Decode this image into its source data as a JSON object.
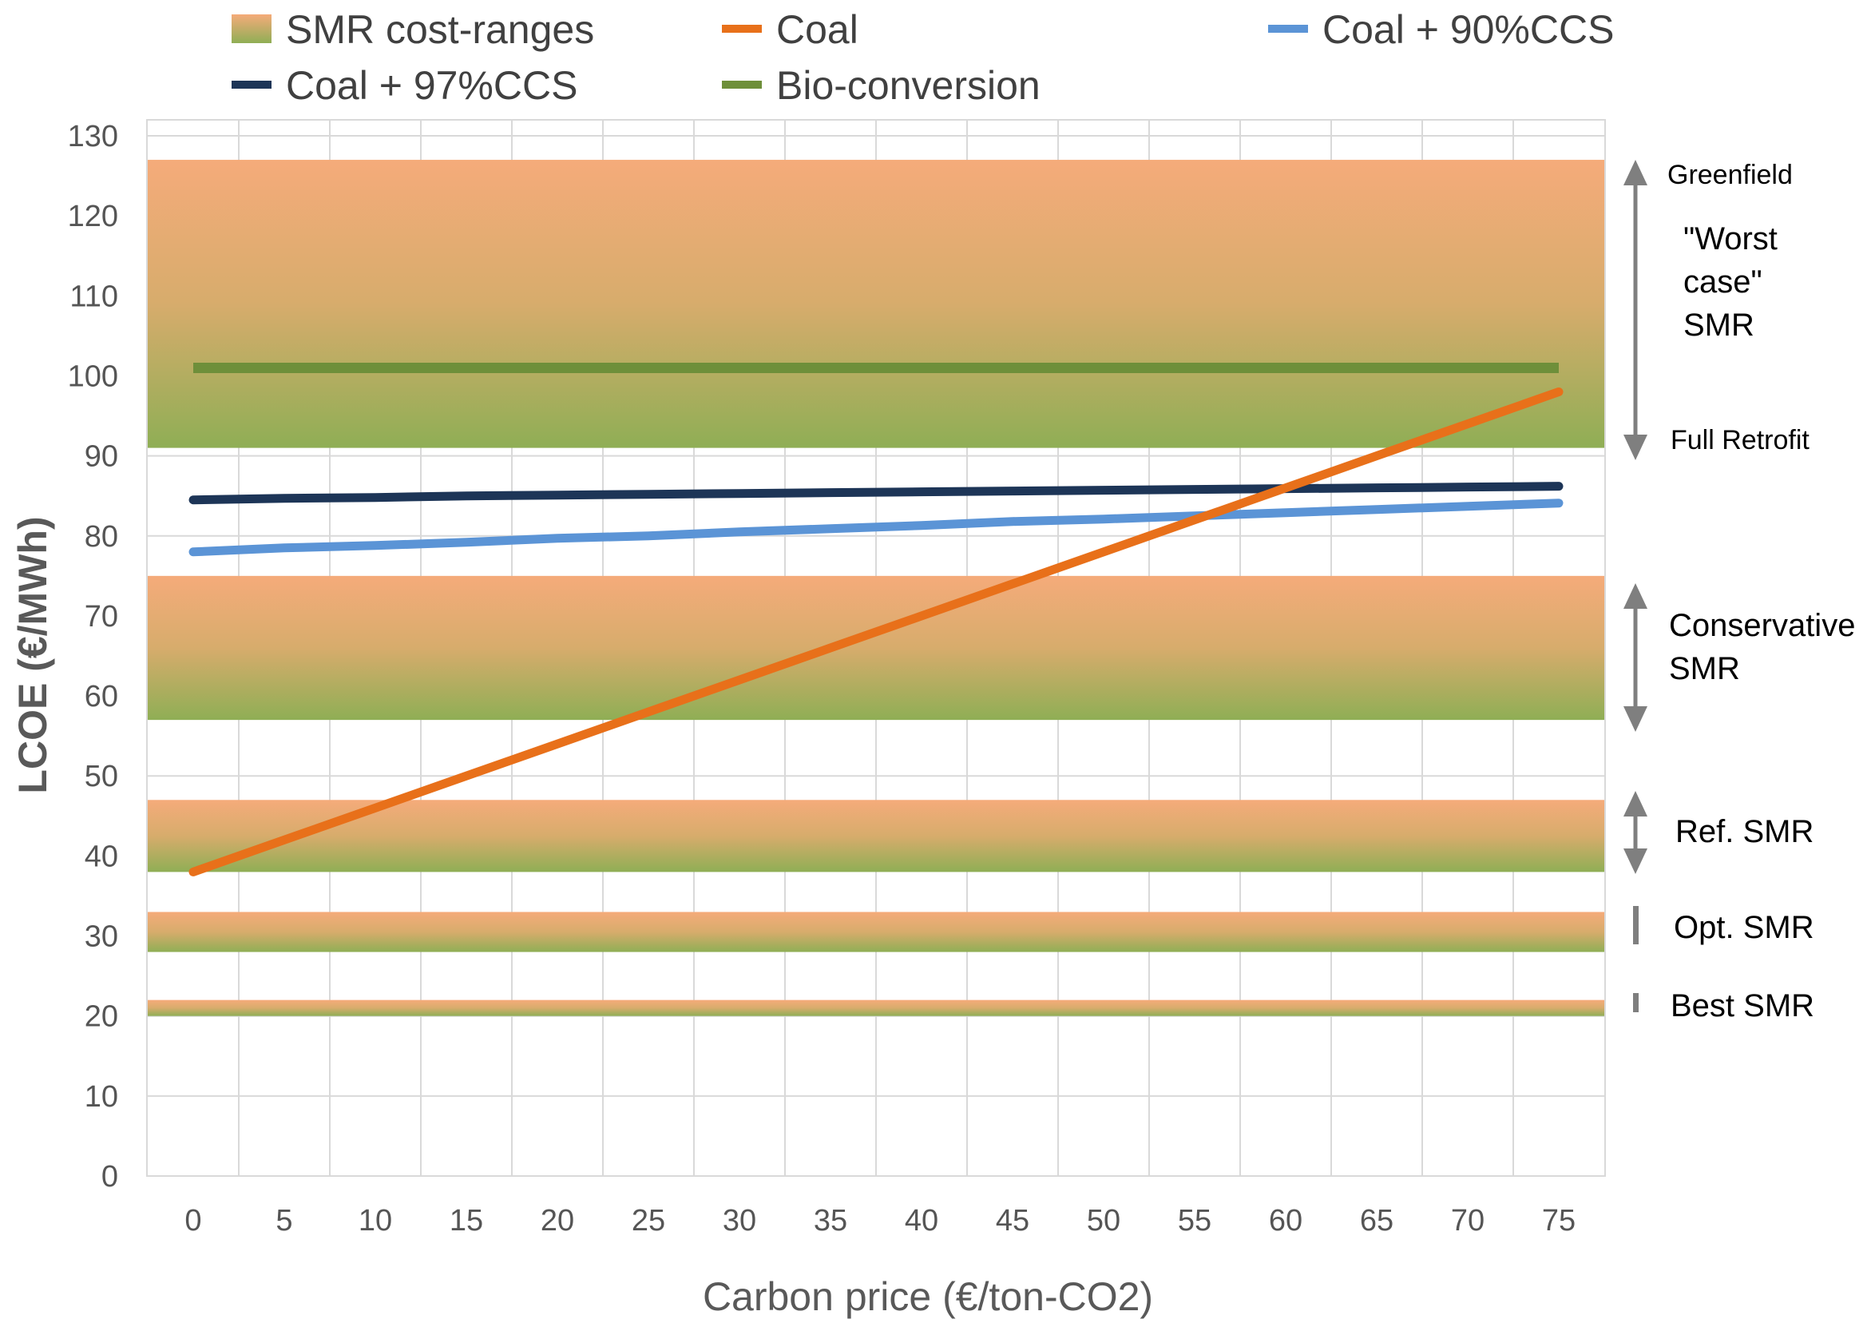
{
  "colors": {
    "band_top": "#f5ab7a",
    "band_bottom": "#8fae55",
    "coal": "#e8701a",
    "ccs90": "#5b94d6",
    "ccs97": "#1d3557",
    "bio": "#6e8f3a",
    "grid": "#d9d9d9",
    "arrow": "#7f7f7f"
  },
  "chart_data": {
    "type": "line",
    "xlabel": "Carbon price (€/ton-CO2)",
    "ylabel": "LCOE (€/MWh)",
    "ylim": [
      0,
      130
    ],
    "yticks": [
      0,
      10,
      20,
      30,
      40,
      50,
      60,
      70,
      80,
      90,
      100,
      110,
      120,
      130
    ],
    "grid": true,
    "legend_position": "top",
    "x": [
      0,
      5,
      10,
      15,
      20,
      25,
      30,
      35,
      40,
      45,
      50,
      55,
      60,
      65,
      70,
      75
    ],
    "series": [
      {
        "name": "Coal",
        "color_key": "coal",
        "values": [
          38,
          42,
          46,
          50,
          54,
          58,
          62,
          66,
          70,
          74,
          78,
          82,
          86,
          90,
          94,
          98
        ]
      },
      {
        "name": "Coal + 90%CCS",
        "color_key": "ccs90",
        "values": [
          78,
          78.5,
          78.8,
          79.2,
          79.7,
          80,
          80.5,
          80.9,
          81.3,
          81.8,
          82.1,
          82.5,
          82.9,
          83.3,
          83.7,
          84.1
        ]
      },
      {
        "name": "Coal + 97%CCS",
        "color_key": "ccs97",
        "values": [
          84.5,
          84.7,
          84.8,
          85,
          85.1,
          85.2,
          85.3,
          85.4,
          85.5,
          85.6,
          85.7,
          85.8,
          85.9,
          86,
          86.1,
          86.2
        ]
      },
      {
        "name": "Bio-conversion",
        "color_key": "bio",
        "values": [
          101,
          101,
          101,
          101,
          101,
          101,
          101,
          101,
          101,
          101,
          101,
          101,
          101,
          101,
          101,
          101
        ]
      }
    ],
    "smr_bands": [
      {
        "name": "Worst case SMR",
        "low": 91,
        "high": 127
      },
      {
        "name": "Conservative SMR",
        "low": 57,
        "high": 75
      },
      {
        "name": "Ref. SMR",
        "low": 38,
        "high": 47
      },
      {
        "name": "Opt. SMR",
        "low": 28,
        "high": 33
      },
      {
        "name": "Best SMR",
        "low": 20,
        "high": 22
      }
    ],
    "legend": [
      {
        "label": "SMR cost-ranges",
        "kind": "band"
      },
      {
        "label": "Coal",
        "kind": "line",
        "color_key": "coal"
      },
      {
        "label": "Coal + 90%CCS",
        "kind": "line",
        "color_key": "ccs90"
      },
      {
        "label": "Coal + 97%CCS",
        "kind": "line",
        "color_key": "ccs97"
      },
      {
        "label": "Bio-conversion",
        "kind": "line",
        "color_key": "bio"
      }
    ],
    "annotations": {
      "greenfield": "Greenfield",
      "worst_case": [
        "\"Worst",
        "case\"",
        "SMR"
      ],
      "full_retrofit": "Full Retrofit",
      "conservative": [
        "Conservative",
        "SMR"
      ],
      "ref": "Ref. SMR",
      "opt": "Opt. SMR",
      "best": "Best SMR"
    }
  }
}
